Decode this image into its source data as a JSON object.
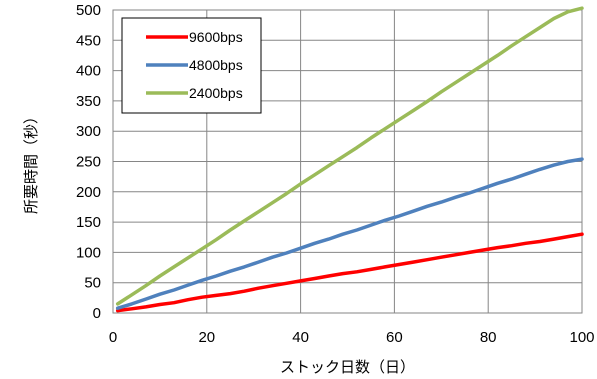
{
  "chart_data": {
    "type": "line",
    "title": "",
    "xlabel": "ストック日数（日）",
    "ylabel": "所要時間（秒）",
    "xlim": [
      0,
      100
    ],
    "ylim": [
      0,
      500
    ],
    "xticks": [
      0,
      20,
      40,
      60,
      80,
      100
    ],
    "yticks": [
      0,
      50,
      100,
      150,
      200,
      250,
      300,
      350,
      400,
      450,
      500
    ],
    "grid": true,
    "legend_position": "top-left",
    "x": [
      1,
      4,
      7,
      10,
      13,
      16,
      19,
      22,
      25,
      28,
      31,
      34,
      37,
      40,
      43,
      46,
      49,
      52,
      55,
      58,
      61,
      64,
      67,
      70,
      73,
      76,
      79,
      82,
      85,
      88,
      91,
      94,
      97,
      100
    ],
    "series": [
      {
        "name": "9600bps",
        "color": "#ff0000",
        "values": [
          4,
          7,
          10,
          14,
          17,
          22,
          26,
          29,
          32,
          36,
          41,
          45,
          49,
          53,
          57,
          61,
          65,
          68,
          72,
          76,
          80,
          84,
          88,
          92,
          96,
          100,
          104,
          108,
          111,
          115,
          118,
          122,
          126,
          130
        ]
      },
      {
        "name": "4800bps",
        "color": "#4f81bd",
        "values": [
          8,
          15,
          23,
          31,
          38,
          46,
          54,
          61,
          69,
          76,
          84,
          92,
          99,
          107,
          115,
          122,
          130,
          137,
          145,
          153,
          160,
          168,
          176,
          183,
          191,
          198,
          206,
          214,
          221,
          229,
          237,
          244,
          250,
          254
        ]
      },
      {
        "name": "2400bps",
        "color": "#9bbb59",
        "values": [
          15,
          30,
          45,
          61,
          76,
          91,
          106,
          121,
          137,
          152,
          167,
          182,
          197,
          213,
          228,
          243,
          258,
          273,
          289,
          304,
          319,
          334,
          349,
          365,
          380,
          395,
          410,
          425,
          441,
          456,
          471,
          486,
          497,
          503
        ]
      }
    ]
  }
}
